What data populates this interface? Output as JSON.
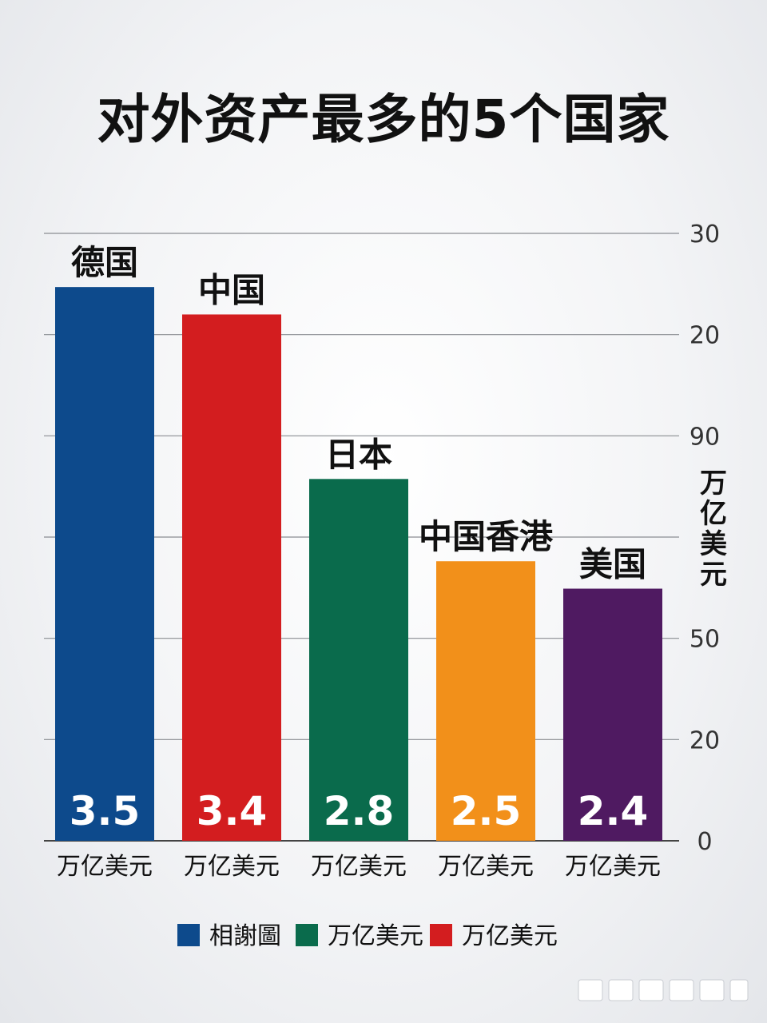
{
  "chart_data": {
    "type": "bar",
    "title": "对外资产最多的5个国家",
    "categories": [
      "德国",
      "中国",
      "日本",
      "中国香港",
      "美国"
    ],
    "values": [
      3.5,
      3.4,
      2.8,
      2.5,
      2.4
    ],
    "value_labels": [
      "3.5",
      "3.4",
      "2.8",
      "2.5",
      "2.4"
    ],
    "category_sublabel": "万亿美元",
    "ylabel": "万亿美元",
    "y_axis_position": "right",
    "y_tick_labels": [
      "0",
      "20",
      "50",
      "",
      "90",
      "20",
      "30"
    ],
    "grid": true,
    "colors": [
      "#0d4a8c",
      "#d31d1f",
      "#0a6b4c",
      "#f2901a",
      "#4f1a61"
    ],
    "legend": {
      "position": "bottom",
      "items": [
        {
          "label": "相謝圖",
          "color": "#0d4a8c"
        },
        {
          "label": "万亿美元",
          "color": "#0a6b4c"
        },
        {
          "label": "万亿美元",
          "color": "#d31d1f"
        }
      ]
    }
  }
}
